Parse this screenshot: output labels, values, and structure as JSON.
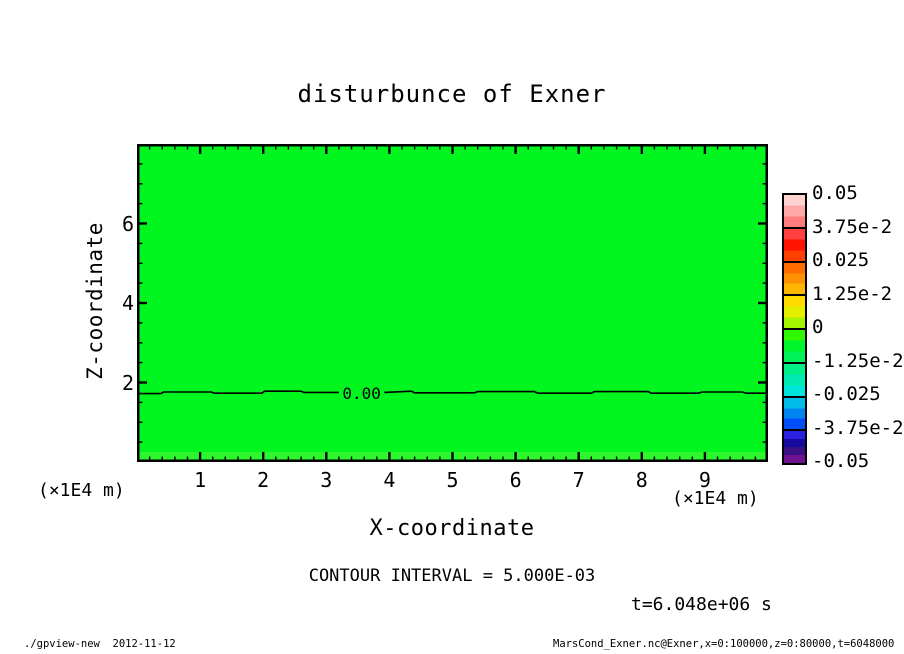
{
  "title": "disturbunce of Exner",
  "axes": {
    "x": {
      "label": "X-coordinate",
      "unit_note": "(×1E4 m)",
      "tick_labels": [
        "1",
        "2",
        "3",
        "4",
        "5",
        "6",
        "7",
        "8",
        "9"
      ]
    },
    "z": {
      "label": "Z-coordinate",
      "unit_note": "(×1E4 m)",
      "tick_labels": [
        "2",
        "4",
        "6"
      ]
    }
  },
  "contour": {
    "zero_label": "0.00",
    "interval_text": "CONTOUR INTERVAL = 5.000E-03"
  },
  "time_text": "t=6.048e+06 s",
  "footer": {
    "left": "./gpview-new  2012-11-12",
    "right": "MarsCond_Exner.nc@Exner,x=0:100000,z=0:80000,t=6048000"
  },
  "colors": {
    "plot_fill": "#00f61e",
    "plot_fill_lower_band": "#2ef72e",
    "frame": "#000000",
    "contour_line": "#000000"
  },
  "colorbar": {
    "labels": [
      "0.05",
      "3.75e-2",
      "0.025",
      "1.25e-2",
      "0",
      "-1.25e-2",
      "-0.025",
      "-3.75e-2",
      "-0.05"
    ],
    "segments": [
      [
        "#ffd2d2",
        "#ffa8a8",
        "#ff7d7d"
      ],
      [
        "#ff4040",
        "#ff1200",
        "#ff3f00"
      ],
      [
        "#ff6c00",
        "#ff9100",
        "#ffb600"
      ],
      [
        "#ffdb00",
        "#e4ef00",
        "#a4f300"
      ],
      [
        "#30f800",
        "#00f52b",
        "#00f259"
      ],
      [
        "#00ee86",
        "#00eab2",
        "#00e5da"
      ],
      [
        "#00bce9",
        "#0085f0",
        "#004ef7"
      ],
      [
        "#2b21e1",
        "#17089e",
        "#3a0f85",
        "#70128f"
      ]
    ]
  },
  "chart_data": {
    "type": "filled_contour",
    "title": "disturbunce of Exner",
    "x_axis": {
      "label": "X-coordinate",
      "units": "×1E4 m",
      "range": [
        0,
        10
      ],
      "major_ticks": [
        1,
        2,
        3,
        4,
        5,
        6,
        7,
        8,
        9
      ],
      "minor_step": 0.2
    },
    "z_axis": {
      "label": "Z-coordinate",
      "units": "×1E4 m",
      "range": [
        0,
        8
      ],
      "major_ticks": [
        2,
        4,
        6
      ],
      "minor_step": 0.5
    },
    "contour_interval": 0.005,
    "colorbar_levels": [
      0.05,
      0.0375,
      0.025,
      0.0125,
      0,
      -0.0125,
      -0.025,
      -0.0375,
      -0.05
    ],
    "zero_contour": {
      "label": "0.00",
      "z_units": 1.74,
      "label_x_units": 3.56,
      "segments_x_z": [
        [
          [
            0,
            1.72
          ],
          [
            0.38,
            1.72
          ],
          [
            0.42,
            1.76
          ],
          [
            1.18,
            1.76
          ],
          [
            1.22,
            1.73
          ],
          [
            1.98,
            1.73
          ],
          [
            2.02,
            1.78
          ],
          [
            2.6,
            1.78
          ],
          [
            2.64,
            1.75
          ],
          [
            3.2,
            1.75
          ]
        ],
        [
          [
            3.92,
            1.75
          ],
          [
            4.35,
            1.78
          ],
          [
            4.4,
            1.74
          ],
          [
            5.35,
            1.74
          ],
          [
            5.4,
            1.77
          ],
          [
            6.3,
            1.77
          ],
          [
            6.35,
            1.73
          ],
          [
            7.2,
            1.73
          ],
          [
            7.25,
            1.77
          ],
          [
            8.1,
            1.77
          ],
          [
            8.15,
            1.73
          ],
          [
            8.9,
            1.73
          ],
          [
            8.95,
            1.76
          ],
          [
            9.6,
            1.76
          ],
          [
            9.65,
            1.73
          ],
          [
            10,
            1.73
          ]
        ]
      ]
    },
    "lower_band_boundary_z_units": 0.25,
    "time_label": "t=6.048e+06 s",
    "field_summary": "Exner function disturbance ~0 over whole domain; single 0.00 contour near z=1.75e4 m",
    "legend_position": "right-colorbar",
    "grid": false
  }
}
